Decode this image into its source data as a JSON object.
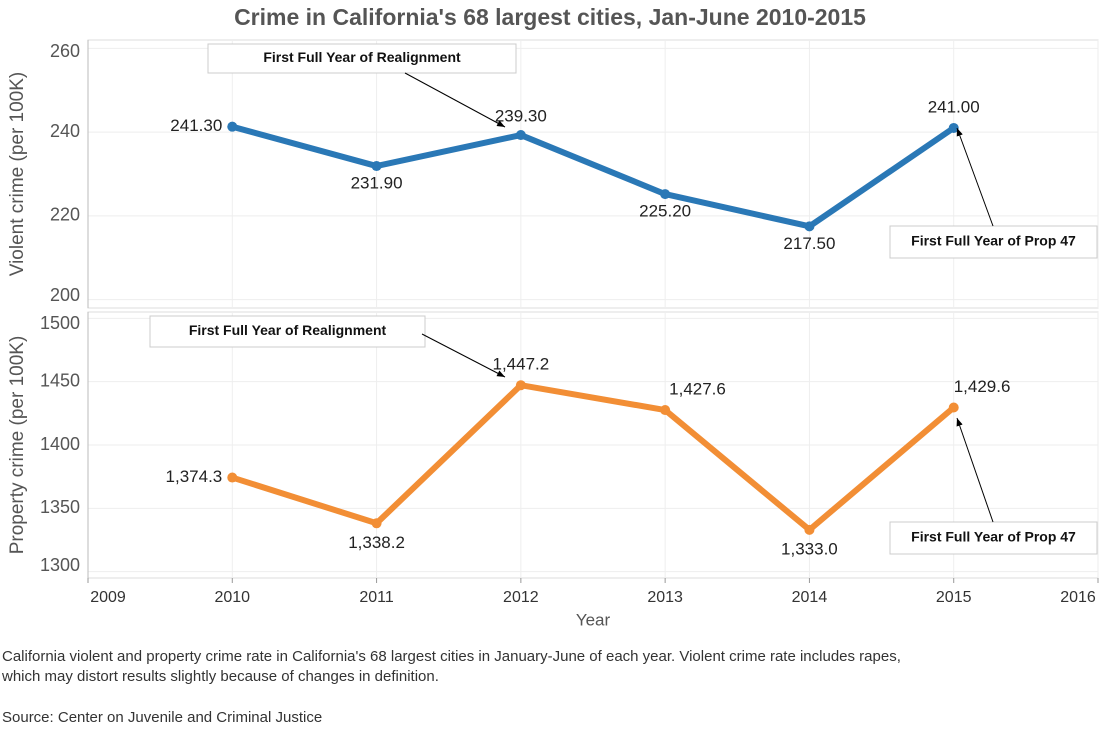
{
  "title": "Crime in California's 68 largest cities, Jan-June 2010-2015",
  "caption": [
    "California violent and property crime rate in California's 68 largest cities in January-June of each year. Violent crime rate includes rapes,",
    "which may distort results slightly because of changes in definition."
  ],
  "source": "Source: Center on Juvenile and Criminal Justice",
  "chart_data": [
    {
      "type": "line",
      "ylabel": "Violent crime (per 100K)",
      "x": [
        2010,
        2011,
        2012,
        2013,
        2014,
        2015
      ],
      "series": [
        {
          "name": "Violent crime",
          "color": "#2a78b6",
          "values": [
            241.3,
            231.9,
            239.3,
            225.2,
            217.5,
            241.0
          ],
          "value_labels": [
            "241.30",
            "231.90",
            "239.30",
            "225.20",
            "217.50",
            "241.00"
          ]
        }
      ],
      "xlim": [
        2009,
        2016
      ],
      "xticks": [
        2009,
        2010,
        2011,
        2012,
        2013,
        2014,
        2015,
        2016
      ],
      "ylim": [
        198,
        262
      ],
      "yticks": [
        200,
        220,
        240,
        260
      ],
      "grid": true,
      "annotations": [
        "First Full Year of Realignment",
        "First Full Year of Prop 47"
      ]
    },
    {
      "type": "line",
      "ylabel": "Property crime (per 100K)",
      "xlabel": "Year",
      "x": [
        2010,
        2011,
        2012,
        2013,
        2014,
        2015
      ],
      "series": [
        {
          "name": "Property crime",
          "color": "#f28e35",
          "values": [
            1374.3,
            1338.2,
            1447.2,
            1427.6,
            1333.0,
            1429.6
          ],
          "value_labels": [
            "1,374.3",
            "1,338.2",
            "1,447.2",
            "1,427.6",
            "1,333.0",
            "1,429.6"
          ]
        }
      ],
      "xlim": [
        2009,
        2016
      ],
      "xticks": [
        2009,
        2010,
        2011,
        2012,
        2013,
        2014,
        2015,
        2016
      ],
      "ylim": [
        1295,
        1505
      ],
      "yticks": [
        1300,
        1350,
        1400,
        1450,
        1500
      ],
      "grid": true,
      "annotations": [
        "First Full Year of Realignment",
        "First Full Year of Prop 47"
      ]
    }
  ]
}
